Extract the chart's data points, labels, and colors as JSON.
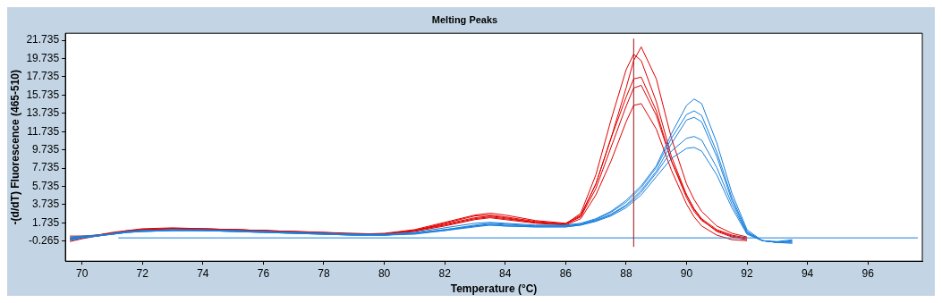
{
  "chart_data": {
    "type": "line",
    "title": "Melting Peaks",
    "xlabel": "Temperature (°C)",
    "ylabel": "-(d/dT) Fluorescence (465-510)",
    "x": [
      69.6,
      70,
      70.5,
      71,
      71.5,
      72,
      73,
      74,
      75,
      76,
      77,
      78,
      79,
      80,
      81,
      82,
      83,
      83.5,
      84,
      85,
      86,
      86.5,
      87,
      87.5,
      88,
      88.25,
      88.5,
      89,
      89.5,
      90,
      90.25,
      90.5,
      91,
      91.5,
      92,
      92.5,
      93,
      93.5
    ],
    "xlim": [
      69.45,
      97.8
    ],
    "xticks": [
      70,
      72,
      74,
      76,
      78,
      80,
      82,
      84,
      86,
      88,
      90,
      92,
      94,
      96
    ],
    "ylim": [
      -2.45,
      22.5
    ],
    "yticks": [
      -0.265,
      1.735,
      3.735,
      5.735,
      7.735,
      9.735,
      11.735,
      13.735,
      15.735,
      17.735,
      19.735,
      21.735
    ],
    "grid": false,
    "legend": false,
    "marker": "none",
    "line_style": "solid",
    "ref_lines": [
      {
        "axis": "x",
        "value": 88.25,
        "color": "#a01010"
      }
    ],
    "series": [
      {
        "color": "#1a80dc",
        "x": [
          71.2,
          97.65
        ],
        "values": [
          0.1,
          0.1
        ]
      },
      {
        "color": "#1a80dc",
        "values": [
          0.0,
          0.2,
          0.3,
          0.6,
          0.8,
          0.9,
          1.0,
          1.0,
          0.9,
          0.8,
          0.7,
          0.6,
          0.5,
          0.5,
          0.7,
          1.2,
          1.7,
          1.8,
          1.7,
          1.5,
          1.5,
          1.7,
          2.2,
          3.0,
          4.2,
          5.0,
          5.8,
          8.0,
          11.5,
          14.6,
          15.3,
          14.8,
          10.5,
          5.0,
          1.0,
          -0.2,
          -0.4,
          -0.3
        ]
      },
      {
        "color": "#1a80dc",
        "values": [
          -0.1,
          0.1,
          0.3,
          0.5,
          0.8,
          0.9,
          1.0,
          0.9,
          0.9,
          0.8,
          0.7,
          0.6,
          0.5,
          0.4,
          0.6,
          1.0,
          1.5,
          1.7,
          1.6,
          1.4,
          1.4,
          1.6,
          2.1,
          2.9,
          4.0,
          4.8,
          5.6,
          7.8,
          11.0,
          13.6,
          14.0,
          13.5,
          9.5,
          4.5,
          0.8,
          -0.2,
          -0.4,
          -0.4
        ]
      },
      {
        "color": "#1a80dc",
        "values": [
          0.1,
          0.2,
          0.3,
          0.5,
          0.7,
          0.8,
          0.9,
          0.9,
          0.8,
          0.7,
          0.6,
          0.5,
          0.4,
          0.4,
          0.6,
          0.9,
          1.4,
          1.6,
          1.5,
          1.4,
          1.4,
          1.6,
          2.0,
          2.7,
          3.7,
          4.5,
          5.3,
          7.4,
          10.4,
          13.0,
          13.3,
          12.8,
          9.0,
          4.2,
          0.7,
          -0.2,
          -0.4,
          -0.2
        ]
      },
      {
        "color": "#1a80dc",
        "values": [
          -0.2,
          0.1,
          0.3,
          0.5,
          0.7,
          0.8,
          0.9,
          0.9,
          0.8,
          0.7,
          0.6,
          0.5,
          0.4,
          0.4,
          0.6,
          1.0,
          1.4,
          1.5,
          1.4,
          1.3,
          1.3,
          1.5,
          2.0,
          2.6,
          3.6,
          4.3,
          5.1,
          7.2,
          9.6,
          11.0,
          11.2,
          10.8,
          7.8,
          3.8,
          0.6,
          -0.2,
          -0.4,
          -0.5
        ]
      },
      {
        "color": "#1a80dc",
        "values": [
          0.2,
          0.3,
          0.4,
          0.5,
          0.7,
          0.8,
          0.9,
          0.9,
          0.8,
          0.7,
          0.6,
          0.5,
          0.4,
          0.4,
          0.5,
          0.9,
          1.3,
          1.5,
          1.4,
          1.3,
          1.3,
          1.5,
          1.9,
          2.5,
          3.4,
          4.1,
          4.8,
          6.8,
          8.8,
          9.9,
          10.0,
          9.6,
          7.0,
          3.4,
          0.5,
          -0.2,
          -0.3,
          -0.1
        ]
      },
      {
        "color": "#e00000",
        "values": [
          0.0,
          0.2,
          0.4,
          0.6,
          0.9,
          1.0,
          1.1,
          1.1,
          1.0,
          0.9,
          0.8,
          0.7,
          0.5,
          0.6,
          1.0,
          1.8,
          2.6,
          2.8,
          2.6,
          2.0,
          1.7,
          2.6,
          6.0,
          11.0,
          16.5,
          19.5,
          21.0,
          17.5,
          11.0,
          6.0,
          4.3,
          3.0,
          1.4,
          0.6,
          0.2,
          null,
          null,
          null
        ]
      },
      {
        "color": "#e00000",
        "values": [
          0.1,
          0.2,
          0.4,
          0.7,
          0.9,
          1.1,
          1.2,
          1.1,
          1.0,
          0.9,
          0.8,
          0.7,
          0.6,
          0.5,
          0.9,
          1.6,
          2.3,
          2.5,
          2.3,
          1.8,
          1.6,
          2.8,
          7.0,
          13.0,
          18.5,
          20.2,
          19.5,
          15.0,
          9.0,
          4.8,
          3.3,
          2.2,
          1.0,
          0.4,
          0.1,
          null,
          null,
          null
        ]
      },
      {
        "color": "#e00000",
        "values": [
          -0.1,
          0.1,
          0.4,
          0.6,
          0.8,
          1.0,
          1.1,
          1.1,
          1.0,
          0.9,
          0.8,
          0.6,
          0.5,
          0.5,
          0.9,
          1.5,
          2.2,
          2.4,
          2.2,
          1.8,
          1.6,
          2.5,
          6.0,
          11.0,
          15.5,
          17.5,
          17.7,
          14.0,
          8.5,
          4.5,
          3.0,
          2.0,
          0.9,
          0.3,
          0.0,
          null,
          null,
          null
        ]
      },
      {
        "color": "#e00000",
        "values": [
          0.3,
          0.3,
          0.4,
          0.6,
          0.8,
          1.0,
          1.1,
          1.0,
          1.0,
          0.9,
          0.7,
          0.6,
          0.5,
          0.5,
          0.9,
          1.7,
          2.5,
          2.6,
          2.4,
          1.9,
          1.6,
          2.4,
          5.5,
          10.0,
          14.5,
          16.5,
          16.8,
          13.5,
          8.5,
          4.8,
          3.2,
          2.1,
          0.8,
          0.2,
          -0.1,
          null,
          null,
          null
        ]
      },
      {
        "color": "#e00000",
        "values": [
          -0.3,
          0.0,
          0.3,
          0.6,
          0.8,
          1.0,
          1.1,
          1.0,
          1.0,
          0.9,
          0.7,
          0.6,
          0.5,
          0.5,
          0.8,
          1.4,
          2.1,
          2.3,
          2.1,
          1.7,
          1.5,
          2.2,
          4.8,
          8.5,
          12.8,
          14.6,
          14.8,
          12.0,
          7.5,
          3.8,
          2.4,
          1.4,
          0.4,
          -0.1,
          -0.2,
          null,
          null,
          null
        ]
      }
    ]
  }
}
